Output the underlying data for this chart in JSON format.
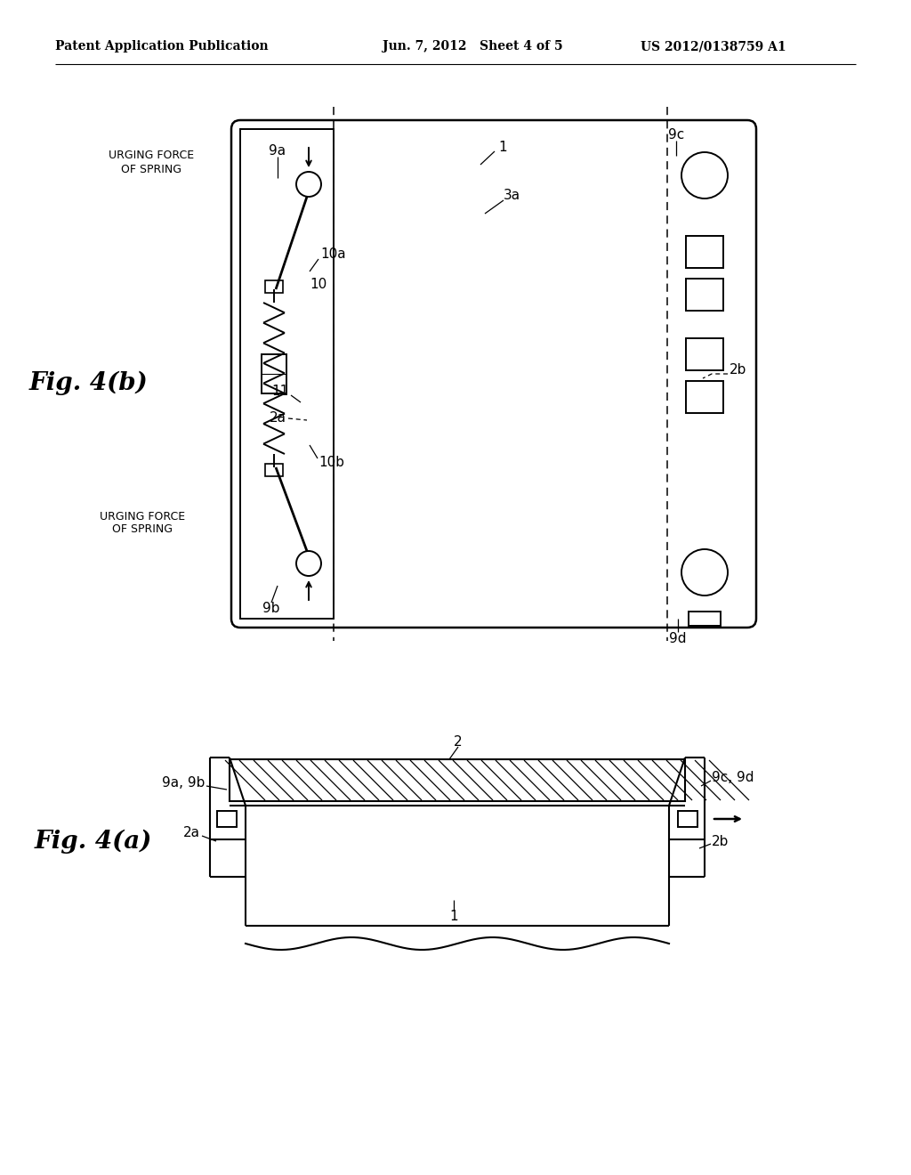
{
  "bg_color": "#ffffff",
  "header_left": "Patent Application Publication",
  "header_center": "Jun. 7, 2012   Sheet 4 of 5",
  "header_right": "US 2012/0138759 A1",
  "fig_b_label": "Fig. 4(b)",
  "fig_a_label": "Fig. 4(a)"
}
